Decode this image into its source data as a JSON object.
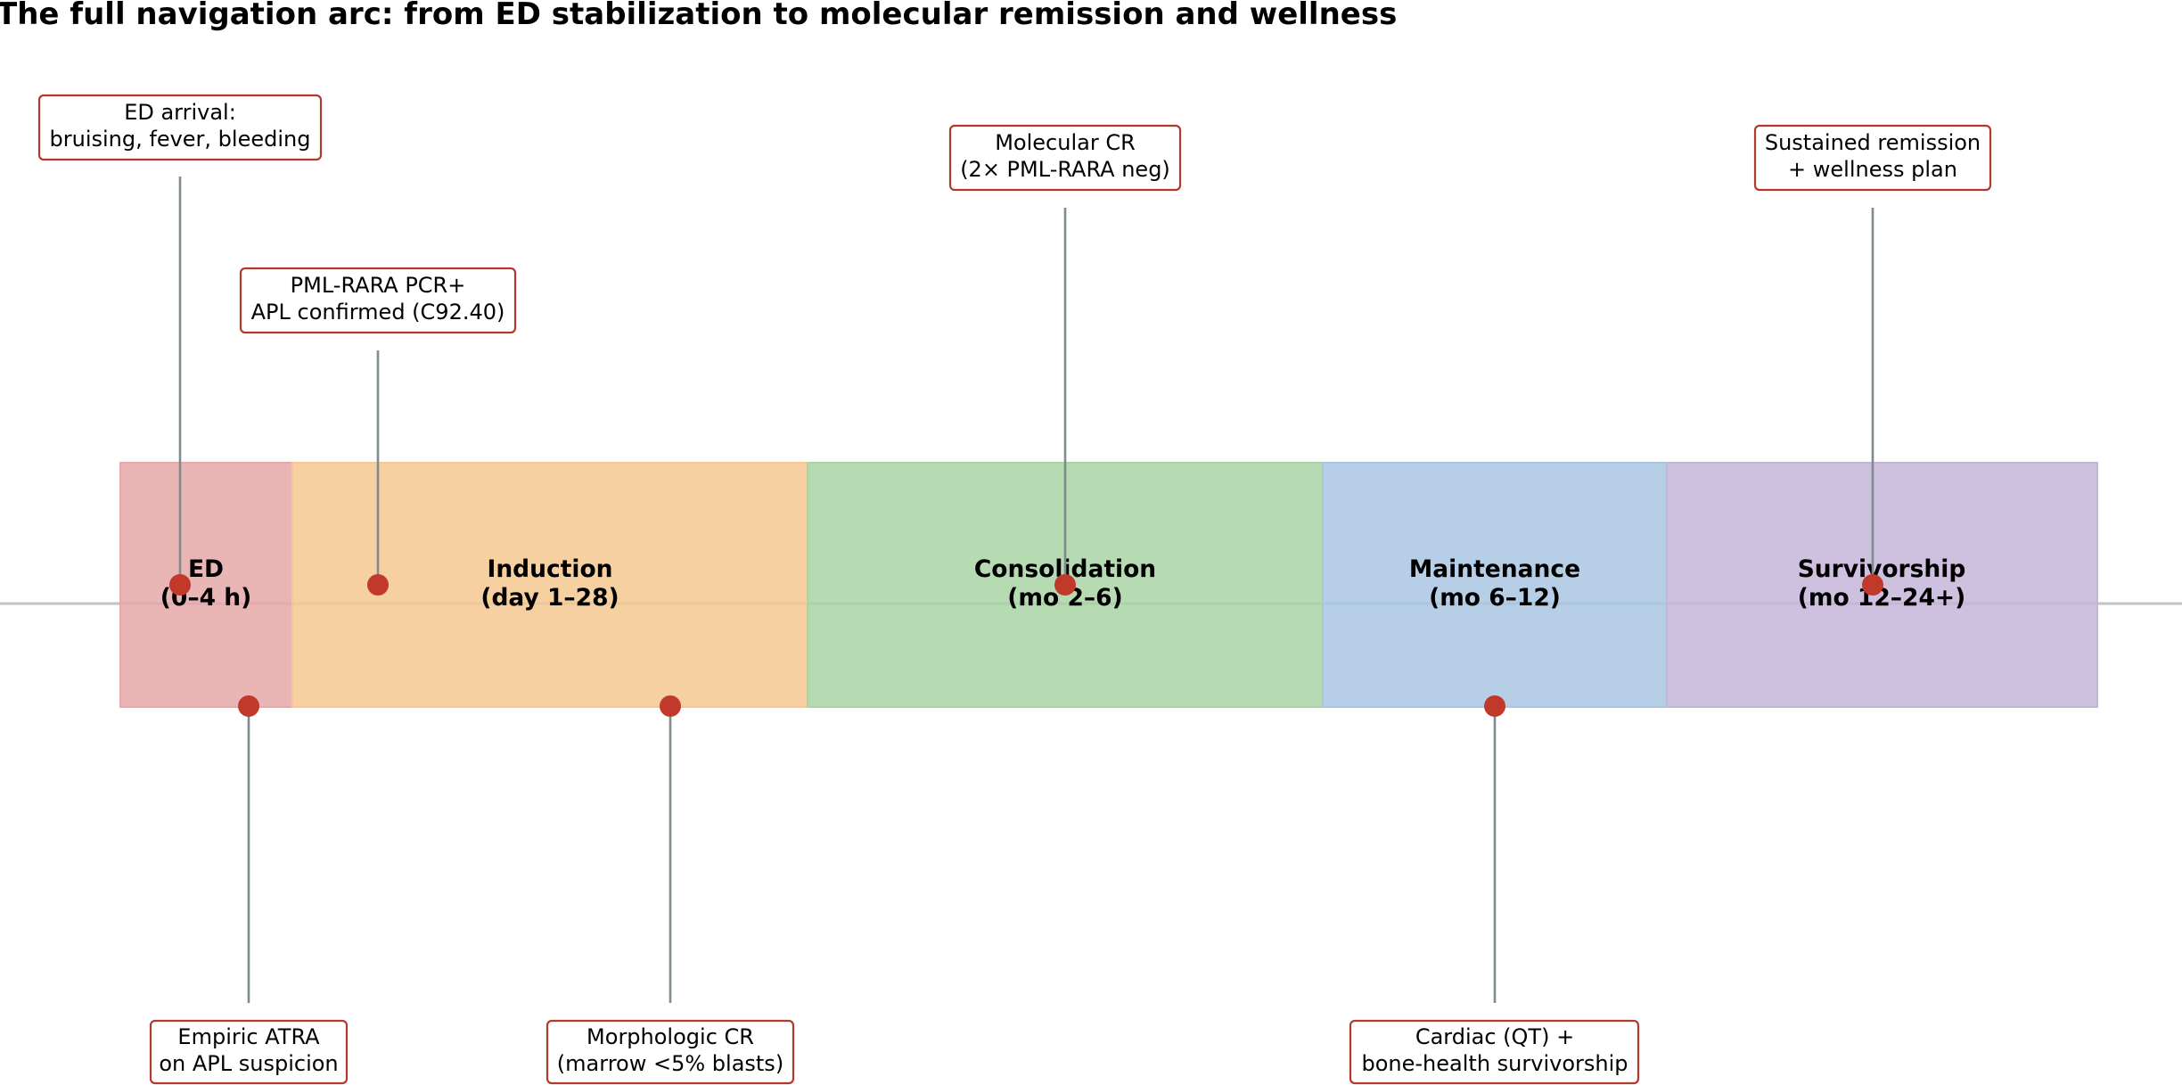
{
  "title": "The full navigation arc: from ED stabilization to molecular remission and wellness",
  "phases": [
    {
      "name": "ED",
      "time": "(0–4 h)",
      "color": "#e6a8a8"
    },
    {
      "name": "Induction",
      "time": "(day 1–28)",
      "color": "#f5c890"
    },
    {
      "name": "Consolidation",
      "time": "(mo 2–6)",
      "color": "#a9d4a5"
    },
    {
      "name": "Maintenance",
      "time": "(mo 6–12)",
      "color": "#a9c7e2"
    },
    {
      "name": "Survivorship",
      "time": "(mo 12–24+)",
      "color": "#c5b6d9"
    }
  ],
  "events": [
    {
      "line1": "ED arrival:",
      "line2": "bruising, fever, bleeding",
      "side": "above",
      "phase": "ED"
    },
    {
      "line1": "PML-RARA PCR+",
      "line2": "APL confirmed (C92.40)",
      "side": "above",
      "phase": "Induction"
    },
    {
      "line1": "Molecular CR",
      "line2": "(2× PML-RARA neg)",
      "side": "above",
      "phase": "Consolidation"
    },
    {
      "line1": "Sustained remission",
      "line2": "+ wellness plan",
      "side": "above",
      "phase": "Survivorship"
    },
    {
      "line1": "Empiric ATRA",
      "line2": "on APL suspicion",
      "side": "below",
      "phase": "ED"
    },
    {
      "line1": "Morphologic CR",
      "line2": "(marrow <5% blasts)",
      "side": "below",
      "phase": "Induction"
    },
    {
      "line1": "Cardiac (QT) +",
      "line2": "bone-health survivorship",
      "side": "below",
      "phase": "Maintenance"
    }
  ],
  "colors": {
    "marker": "#c0392b",
    "box_border": "#b03a2e",
    "stem": "#7f8c8d",
    "axis": "#bdc3c7"
  }
}
